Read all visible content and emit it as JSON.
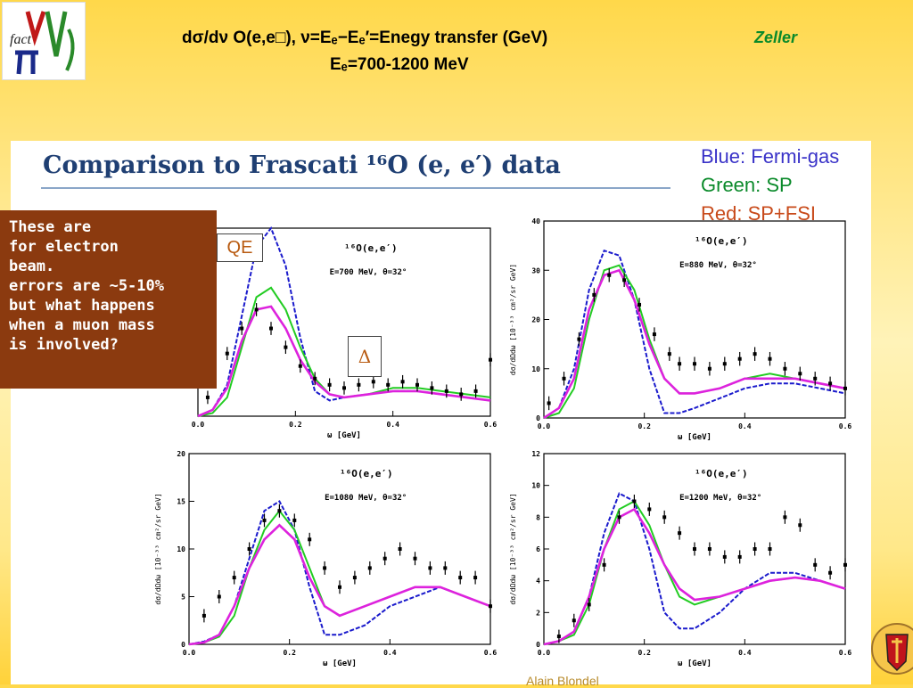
{
  "header": {
    "title_line1": "dσ/dν O(e,e□), ν=Eₑ−Eₑ′=Enegy transfer (GeV)",
    "title_line2": "Eₑ=700-1200 MeV",
    "author": "Zeller"
  },
  "logo": {
    "text": "fact",
    "icon": "fact-nu-logo"
  },
  "slide": {
    "heading": "Comparison to Frascati ¹⁶O (e, e′) data",
    "legend": [
      {
        "label": "Blue:  Fermi-gas",
        "color": "#3a33c8"
      },
      {
        "label": "Green: SP",
        "color": "#0a8a2a"
      },
      {
        "label": "Red: SP+FSI",
        "color": "#c84a1a"
      }
    ],
    "note": "These are\nfor electron\nbeam.\nerrors are ~5-10%\nbut what happens\nwhen a muon mass\nis involved?",
    "tag_qe": "QE",
    "tag_delta": "Δ",
    "footer_partial": "Alain Blondel"
  },
  "colors": {
    "fermi_gas": "#1a1acc",
    "sp": "#22cc22",
    "sp_fsi": "#dd22dd",
    "data": "#000000"
  },
  "chart_data": [
    {
      "type": "line",
      "title": "¹⁶O(e,e′)",
      "annotation": "E=700 MeV, θ=32°",
      "xlabel": "ω [GeV]",
      "xticks": [
        "0.0",
        "0.2",
        "0.4",
        "0.6"
      ],
      "xlim": [
        0,
        0.6
      ],
      "ylim": [
        0,
        60
      ],
      "series": [
        {
          "name": "Fermi-gas",
          "x": [
            0,
            0.03,
            0.06,
            0.09,
            0.12,
            0.15,
            0.18,
            0.21,
            0.24,
            0.27,
            0.3,
            0.35,
            0.4,
            0.45,
            0.5,
            0.55,
            0.6
          ],
          "y": [
            0,
            2,
            10,
            32,
            54,
            60,
            48,
            25,
            8,
            5,
            6,
            7,
            8,
            8,
            7,
            6,
            5
          ]
        },
        {
          "name": "SP",
          "x": [
            0,
            0.03,
            0.06,
            0.09,
            0.12,
            0.15,
            0.18,
            0.21,
            0.24,
            0.27,
            0.3,
            0.35,
            0.4,
            0.45,
            0.5,
            0.55,
            0.6
          ],
          "y": [
            0,
            1,
            6,
            22,
            38,
            41,
            34,
            22,
            12,
            7,
            6,
            7,
            9,
            9,
            8,
            7,
            6
          ]
        },
        {
          "name": "SP+FSI",
          "x": [
            0,
            0.03,
            0.06,
            0.09,
            0.12,
            0.15,
            0.18,
            0.21,
            0.24,
            0.27,
            0.3,
            0.35,
            0.4,
            0.45,
            0.5,
            0.55,
            0.6
          ],
          "y": [
            0,
            2,
            9,
            24,
            34,
            35,
            28,
            18,
            11,
            7,
            6,
            7,
            8,
            8,
            7,
            6,
            5
          ]
        },
        {
          "name": "data",
          "x": [
            0.02,
            0.06,
            0.09,
            0.12,
            0.15,
            0.18,
            0.21,
            0.24,
            0.27,
            0.3,
            0.33,
            0.36,
            0.39,
            0.42,
            0.45,
            0.48,
            0.51,
            0.54,
            0.57,
            0.6
          ],
          "y": [
            6,
            20,
            28,
            34,
            28,
            22,
            16,
            12,
            10,
            9,
            10,
            11,
            10,
            11,
            10,
            9,
            8,
            7,
            8,
            18
          ]
        }
      ]
    },
    {
      "type": "line",
      "title": "¹⁶O(e,e′)",
      "annotation": "E=880 MeV, θ=32°",
      "ylabel": "dσ/dΩdω [10⁻³³ cm²/sr GeV]",
      "xlabel": "ω [GeV]",
      "xticks": [
        "0.0",
        "0.2",
        "0.4",
        "0.6"
      ],
      "yticks": [
        "0",
        "10",
        "20",
        "30",
        "40"
      ],
      "xlim": [
        0,
        0.6
      ],
      "ylim": [
        0,
        40
      ],
      "series": [
        {
          "name": "Fermi-gas",
          "x": [
            0,
            0.03,
            0.06,
            0.09,
            0.12,
            0.15,
            0.18,
            0.21,
            0.24,
            0.27,
            0.3,
            0.35,
            0.4,
            0.45,
            0.5,
            0.55,
            0.6
          ],
          "y": [
            0,
            2,
            10,
            26,
            34,
            33,
            24,
            10,
            1,
            1,
            2,
            4,
            6,
            7,
            7,
            6,
            5
          ]
        },
        {
          "name": "SP",
          "x": [
            0,
            0.03,
            0.06,
            0.09,
            0.12,
            0.15,
            0.18,
            0.21,
            0.24,
            0.27,
            0.3,
            0.35,
            0.4,
            0.45,
            0.5,
            0.55,
            0.6
          ],
          "y": [
            0,
            1,
            6,
            20,
            30,
            31,
            26,
            16,
            8,
            5,
            5,
            6,
            8,
            9,
            8,
            7,
            6
          ]
        },
        {
          "name": "SP+FSI",
          "x": [
            0,
            0.03,
            0.06,
            0.09,
            0.12,
            0.15,
            0.18,
            0.21,
            0.24,
            0.27,
            0.3,
            0.35,
            0.4,
            0.45,
            0.5,
            0.55,
            0.6
          ],
          "y": [
            0,
            2,
            8,
            22,
            29,
            30,
            24,
            15,
            8,
            5,
            5,
            6,
            8,
            8,
            8,
            7,
            6
          ]
        },
        {
          "name": "data",
          "x": [
            0.01,
            0.04,
            0.07,
            0.1,
            0.13,
            0.16,
            0.19,
            0.22,
            0.25,
            0.27,
            0.3,
            0.33,
            0.36,
            0.39,
            0.42,
            0.45,
            0.48,
            0.51,
            0.54,
            0.57,
            0.6
          ],
          "y": [
            3,
            8,
            16,
            25,
            29,
            28,
            23,
            17,
            13,
            11,
            11,
            10,
            11,
            12,
            13,
            12,
            10,
            9,
            8,
            7,
            6
          ]
        }
      ]
    },
    {
      "type": "line",
      "title": "¹⁶O(e,e′)",
      "annotation": "E=1080 MeV, θ=32°",
      "ylabel": "dσ/dΩdω [10⁻³³ cm²/sr GeV]",
      "xlabel": "ω [GeV]",
      "xticks": [
        "0.0",
        "0.2",
        "0.4",
        "0.6"
      ],
      "yticks": [
        "0",
        "5",
        "10",
        "15",
        "20"
      ],
      "xlim": [
        0,
        0.6
      ],
      "ylim": [
        0,
        20
      ],
      "series": [
        {
          "name": "Fermi-gas",
          "x": [
            0,
            0.03,
            0.06,
            0.09,
            0.12,
            0.15,
            0.18,
            0.21,
            0.24,
            0.27,
            0.3,
            0.35,
            0.4,
            0.45,
            0.5,
            0.55,
            0.6
          ],
          "y": [
            0,
            0.3,
            1,
            4,
            9,
            14,
            15,
            12,
            6,
            1,
            1,
            2,
            4,
            5,
            6,
            5,
            4
          ]
        },
        {
          "name": "SP",
          "x": [
            0,
            0.03,
            0.06,
            0.09,
            0.12,
            0.15,
            0.18,
            0.21,
            0.24,
            0.27,
            0.3,
            0.35,
            0.4,
            0.45,
            0.5,
            0.55,
            0.6
          ],
          "y": [
            0,
            0.2,
            0.8,
            3,
            8,
            12,
            14,
            12,
            8,
            4,
            3,
            4,
            5,
            6,
            6,
            5,
            4
          ]
        },
        {
          "name": "SP+FSI",
          "x": [
            0,
            0.03,
            0.06,
            0.09,
            0.12,
            0.15,
            0.18,
            0.21,
            0.24,
            0.27,
            0.3,
            0.35,
            0.4,
            0.45,
            0.5,
            0.55,
            0.6
          ],
          "y": [
            0,
            0.2,
            1,
            4,
            8,
            11,
            12.5,
            11,
            7,
            4,
            3,
            4,
            5,
            6,
            6,
            5,
            4
          ]
        },
        {
          "name": "data",
          "x": [
            0.03,
            0.06,
            0.09,
            0.12,
            0.15,
            0.18,
            0.21,
            0.24,
            0.27,
            0.3,
            0.33,
            0.36,
            0.39,
            0.42,
            0.45,
            0.48,
            0.51,
            0.54,
            0.57,
            0.6
          ],
          "y": [
            3,
            5,
            7,
            10,
            13,
            14,
            13,
            11,
            8,
            6,
            7,
            8,
            9,
            10,
            9,
            8,
            8,
            7,
            7,
            4
          ]
        }
      ]
    },
    {
      "type": "line",
      "title": "¹⁶O(e,e′)",
      "annotation": "E=1200 MeV, θ=32°",
      "ylabel": "dσ/dΩdω [10⁻³³ cm²/sr GeV]",
      "xlabel": "ω [GeV]",
      "xticks": [
        "0.0",
        "0.2",
        "0.4",
        "0.6"
      ],
      "yticks": [
        "0",
        "2",
        "4",
        "6",
        "8",
        "10",
        "12"
      ],
      "xlim": [
        0,
        0.6
      ],
      "ylim": [
        0,
        12
      ],
      "series": [
        {
          "name": "Fermi-gas",
          "x": [
            0,
            0.03,
            0.06,
            0.09,
            0.12,
            0.15,
            0.18,
            0.21,
            0.24,
            0.27,
            0.3,
            0.35,
            0.4,
            0.45,
            0.5,
            0.55,
            0.6
          ],
          "y": [
            0,
            0.2,
            0.8,
            3,
            7,
            9.5,
            9,
            6,
            2,
            1,
            1,
            2,
            3.5,
            4.5,
            4.5,
            4,
            3.5
          ]
        },
        {
          "name": "SP",
          "x": [
            0,
            0.03,
            0.06,
            0.09,
            0.12,
            0.15,
            0.18,
            0.21,
            0.24,
            0.27,
            0.3,
            0.35,
            0.4,
            0.45,
            0.5,
            0.55,
            0.6
          ],
          "y": [
            0,
            0.2,
            0.6,
            2.5,
            6,
            8.5,
            9,
            7.5,
            5,
            3,
            2.5,
            3,
            3.5,
            4,
            4.2,
            4,
            3.5
          ]
        },
        {
          "name": "SP+FSI",
          "x": [
            0,
            0.03,
            0.06,
            0.09,
            0.12,
            0.15,
            0.18,
            0.21,
            0.24,
            0.27,
            0.3,
            0.35,
            0.4,
            0.45,
            0.5,
            0.55,
            0.6
          ],
          "y": [
            0,
            0.2,
            0.8,
            3,
            6,
            8,
            8.5,
            7,
            5,
            3.5,
            2.8,
            3,
            3.5,
            4,
            4.2,
            4,
            3.5
          ]
        },
        {
          "name": "data",
          "x": [
            0.03,
            0.06,
            0.09,
            0.12,
            0.15,
            0.18,
            0.21,
            0.24,
            0.27,
            0.3,
            0.33,
            0.36,
            0.39,
            0.42,
            0.45,
            0.48,
            0.51,
            0.54,
            0.57,
            0.6
          ],
          "y": [
            0.5,
            1.5,
            2.5,
            5,
            8,
            9,
            8.5,
            8,
            7,
            6,
            6,
            5.5,
            5.5,
            6,
            6,
            8,
            7.5,
            5,
            4.5,
            5
          ]
        }
      ]
    }
  ]
}
